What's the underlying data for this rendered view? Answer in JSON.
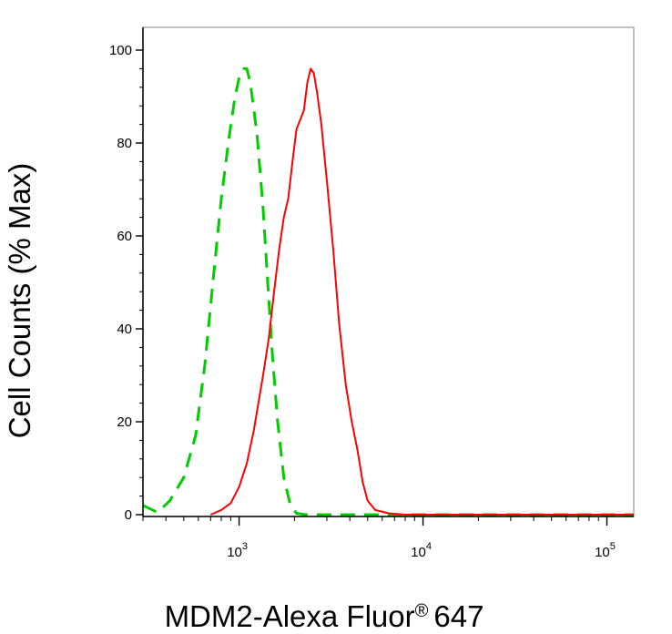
{
  "chart_data": {
    "type": "line",
    "title": "",
    "xlabel": "MDM2-Alexa Fluor",
    "xlabel_suffix": "647",
    "xlabel_mark": "®",
    "ylabel": "Cell Counts (% Max)",
    "x_scale": "log",
    "xlim": [
      300,
      140000
    ],
    "ylim": [
      0,
      105
    ],
    "x_ticks": [
      {
        "value": 1000,
        "base": "10",
        "exp": "3"
      },
      {
        "value": 10000,
        "base": "10",
        "exp": "4"
      },
      {
        "value": 100000,
        "base": "10",
        "exp": "5"
      }
    ],
    "y_ticks": [
      {
        "value": 0,
        "label": "0"
      },
      {
        "value": 20,
        "label": "20"
      },
      {
        "value": 40,
        "label": "40"
      },
      {
        "value": 60,
        "label": "60"
      },
      {
        "value": 80,
        "label": "80"
      },
      {
        "value": 100,
        "label": "100"
      }
    ],
    "grid": false,
    "legend": "none",
    "series": [
      {
        "color": "#00cc00",
        "style": "dashed",
        "points": [
          [
            300,
            2
          ],
          [
            360,
            0.5
          ],
          [
            420,
            3
          ],
          [
            500,
            8
          ],
          [
            580,
            17
          ],
          [
            650,
            32
          ],
          [
            720,
            50
          ],
          [
            800,
            68
          ],
          [
            880,
            81
          ],
          [
            950,
            90
          ],
          [
            1000,
            94
          ],
          [
            1060,
            96
          ],
          [
            1100,
            96
          ],
          [
            1150,
            93
          ],
          [
            1250,
            82
          ],
          [
            1350,
            66
          ],
          [
            1430,
            50
          ],
          [
            1520,
            34
          ],
          [
            1620,
            20
          ],
          [
            1750,
            8
          ],
          [
            1900,
            2
          ],
          [
            2050,
            0.3
          ],
          [
            2300,
            0
          ],
          [
            10000,
            0
          ],
          [
            140000,
            0
          ]
        ]
      },
      {
        "color": "#ff0000",
        "style": "solid",
        "points": [
          [
            700,
            0
          ],
          [
            800,
            1
          ],
          [
            900,
            2.5
          ],
          [
            1000,
            6
          ],
          [
            1100,
            11
          ],
          [
            1200,
            18
          ],
          [
            1350,
            30
          ],
          [
            1450,
            38
          ],
          [
            1550,
            48
          ],
          [
            1650,
            57
          ],
          [
            1750,
            64
          ],
          [
            1850,
            68
          ],
          [
            1950,
            76
          ],
          [
            2050,
            83
          ],
          [
            2150,
            85
          ],
          [
            2250,
            87
          ],
          [
            2350,
            93
          ],
          [
            2450,
            96
          ],
          [
            2550,
            95
          ],
          [
            2650,
            91
          ],
          [
            2800,
            84
          ],
          [
            3000,
            72
          ],
          [
            3250,
            57
          ],
          [
            3500,
            41
          ],
          [
            3800,
            28
          ],
          [
            4100,
            20
          ],
          [
            4400,
            14
          ],
          [
            4700,
            7
          ],
          [
            5000,
            3
          ],
          [
            5500,
            1
          ],
          [
            6500,
            0.3
          ],
          [
            8000,
            0
          ],
          [
            10000,
            0
          ],
          [
            140000,
            0
          ]
        ]
      }
    ]
  }
}
